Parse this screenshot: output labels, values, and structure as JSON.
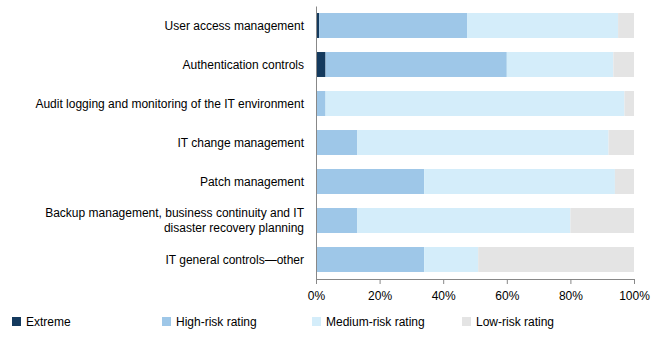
{
  "chart_data": {
    "type": "bar",
    "orientation": "horizontal",
    "stacked": true,
    "legend": "bottom",
    "categories": [
      "User access management",
      "Authentication controls",
      "Audit logging and monitoring of the IT environment",
      "IT change management",
      "Patch management",
      "Backup management, business continuity and IT disaster recovery planning",
      "IT general controls—other"
    ],
    "series": [
      {
        "name": "Extreme",
        "color": "#143a5e",
        "values": [
          1,
          3,
          0,
          0,
          0,
          0,
          0
        ]
      },
      {
        "name": "High-risk rating",
        "color": "#9ec7e8",
        "values": [
          46.5,
          57,
          3,
          13,
          34,
          13,
          34
        ]
      },
      {
        "name": "Medium-risk rating",
        "color": "#d4edfa",
        "values": [
          47.5,
          33.5,
          94,
          79,
          60,
          67,
          17
        ]
      },
      {
        "name": "Low-risk rating",
        "color": "#e4e4e4",
        "values": [
          5,
          6.5,
          3,
          8,
          6,
          20,
          49
        ]
      }
    ],
    "xlim": [
      0,
      100
    ],
    "xticks": [
      {
        "value": 0,
        "label": "0%"
      },
      {
        "value": 20,
        "label": "20%"
      },
      {
        "value": 40,
        "label": "40%"
      },
      {
        "value": 60,
        "label": "60%"
      },
      {
        "value": 80,
        "label": "80%"
      },
      {
        "value": 100,
        "label": "100%"
      }
    ]
  }
}
